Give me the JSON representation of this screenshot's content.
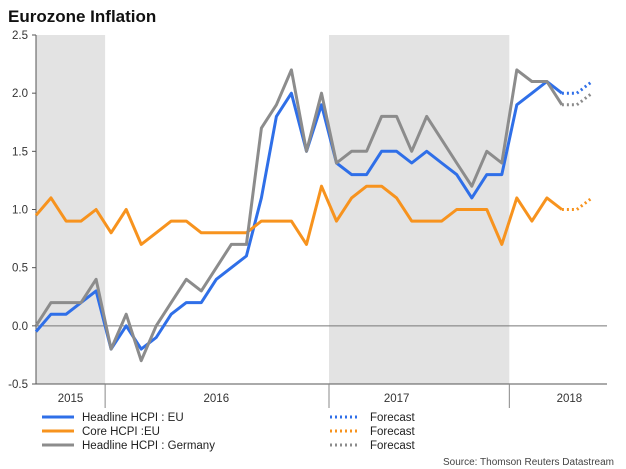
{
  "chart_data": {
    "type": "line",
    "title": "Eurozone Inflation",
    "source": "Source: Thomson Reuters Datastream",
    "ylim": [
      -0.5,
      2.5
    ],
    "yticks": [
      -0.5,
      0.0,
      0.5,
      1.0,
      1.5,
      2.0,
      2.5
    ],
    "ytick_labels": [
      "-0.5",
      "0.0",
      "0.5",
      "1.0",
      "1.5",
      "2.0",
      "2.5"
    ],
    "xlim": [
      0,
      38
    ],
    "x_unit": "months since Jan 2015",
    "year_labels": [
      {
        "label": "2015",
        "x": 2.3
      },
      {
        "label": "2016",
        "x": 12
      },
      {
        "label": "2017",
        "x": 24
      },
      {
        "label": "2018",
        "x": 35.5
      }
    ],
    "year_dividers": [
      4.6,
      19.5,
      31.5
    ],
    "shaded_ranges": [
      [
        0,
        4.6
      ],
      [
        19.5,
        31.5
      ]
    ],
    "zero_line": 0,
    "series": [
      {
        "name": "Headline HCPI : EU",
        "color": "#2f6fe8",
        "x": [
          0,
          1,
          2,
          3,
          4,
          5,
          6,
          7,
          8,
          9,
          10,
          11,
          12,
          13,
          14,
          15,
          16,
          17,
          18,
          19,
          20,
          21,
          22,
          23,
          24,
          25,
          26,
          27,
          28,
          29,
          30,
          31,
          32,
          33,
          34,
          35,
          36,
          37
        ],
        "values": [
          -0.05,
          0.1,
          0.1,
          0.2,
          0.3,
          -0.2,
          0.0,
          -0.2,
          -0.1,
          0.1,
          0.2,
          0.2,
          0.4,
          0.5,
          0.6,
          1.1,
          1.8,
          2.0,
          1.5,
          1.9,
          1.4,
          1.3,
          1.3,
          1.5,
          1.5,
          1.4,
          1.5,
          1.4,
          1.3,
          1.1,
          1.3,
          1.3,
          1.9,
          2.0,
          2.1,
          2.0,
          null,
          null
        ],
        "forecast_x": [
          36,
          37
        ],
        "forecast_values": [
          2.0,
          2.1
        ]
      },
      {
        "name": "Core HCPI :EU",
        "color": "#f7931e",
        "x": [
          0,
          1,
          2,
          3,
          4,
          5,
          6,
          7,
          8,
          9,
          10,
          11,
          12,
          13,
          14,
          15,
          16,
          17,
          18,
          19,
          20,
          21,
          22,
          23,
          24,
          25,
          26,
          27,
          28,
          29,
          30,
          31,
          32,
          33,
          34,
          35,
          36,
          37
        ],
        "values": [
          0.95,
          1.1,
          0.9,
          0.9,
          1.0,
          0.8,
          1.0,
          0.7,
          0.8,
          0.9,
          0.9,
          0.8,
          0.8,
          0.8,
          0.8,
          0.9,
          0.9,
          0.9,
          0.7,
          1.2,
          0.9,
          1.1,
          1.2,
          1.2,
          1.1,
          0.9,
          0.9,
          0.9,
          1.0,
          1.0,
          1.0,
          0.7,
          1.1,
          0.9,
          1.1,
          1.0,
          null,
          null
        ],
        "forecast_x": [
          36,
          37
        ],
        "forecast_values": [
          1.0,
          1.1
        ]
      },
      {
        "name": "Headline HCPI : Germany",
        "color": "#8c8c8c",
        "x": [
          0,
          1,
          2,
          3,
          4,
          5,
          6,
          7,
          8,
          9,
          10,
          11,
          12,
          13,
          14,
          15,
          16,
          17,
          18,
          19,
          20,
          21,
          22,
          23,
          24,
          25,
          26,
          27,
          28,
          29,
          30,
          31,
          32,
          33,
          34,
          35,
          36,
          37
        ],
        "values": [
          0.0,
          0.2,
          0.2,
          0.2,
          0.4,
          -0.2,
          0.1,
          -0.3,
          0.0,
          0.2,
          0.4,
          0.3,
          0.5,
          0.7,
          0.7,
          1.7,
          1.9,
          2.2,
          1.5,
          2.0,
          1.4,
          1.5,
          1.5,
          1.8,
          1.8,
          1.5,
          1.8,
          1.6,
          1.4,
          1.2,
          1.5,
          1.4,
          2.2,
          2.1,
          2.1,
          1.9,
          null,
          null
        ],
        "forecast_x": [
          36,
          37
        ],
        "forecast_values": [
          1.9,
          2.0
        ]
      }
    ],
    "legend": {
      "position": "bottom-left",
      "entries": [
        {
          "label": "Headline HCPI : EU",
          "forecast_label": "Forecast",
          "color": "#2f6fe8"
        },
        {
          "label": "Core HCPI :EU",
          "forecast_label": "Forecast",
          "color": "#f7931e"
        },
        {
          "label": "Headline HCPI : Germany",
          "forecast_label": "Forecast",
          "color": "#8c8c8c"
        }
      ]
    }
  }
}
